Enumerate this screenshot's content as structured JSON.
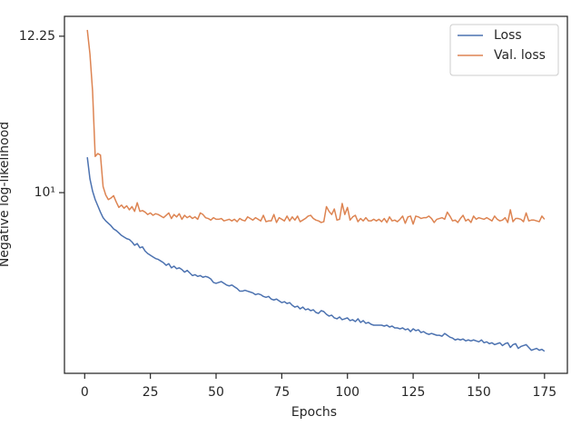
{
  "chart_data": {
    "type": "line",
    "xlabel": "Epochs",
    "ylabel": "Negative log-likelihood",
    "log_y": true,
    "legend": "upper right",
    "xlim": [
      -7.7,
      183.7
    ],
    "ylim": [
      7.91,
      12.57
    ],
    "xticks": [
      0,
      25,
      50,
      75,
      100,
      125,
      150,
      175
    ],
    "yticks": [
      {
        "value": 10,
        "label": "10¹"
      },
      12.25
    ],
    "x": [
      1,
      2,
      3,
      4,
      5,
      6,
      7,
      8,
      9,
      10,
      11,
      12,
      13,
      14,
      15,
      16,
      17,
      18,
      19,
      20,
      21,
      22,
      23,
      24,
      25,
      26,
      27,
      28,
      29,
      30,
      31,
      32,
      33,
      34,
      35,
      36,
      37,
      38,
      39,
      40,
      41,
      42,
      43,
      44,
      45,
      46,
      47,
      48,
      49,
      50,
      51,
      52,
      53,
      54,
      55,
      56,
      57,
      58,
      59,
      60,
      61,
      62,
      63,
      64,
      65,
      66,
      67,
      68,
      69,
      70,
      71,
      72,
      73,
      74,
      75,
      76,
      77,
      78,
      79,
      80,
      81,
      82,
      83,
      84,
      85,
      86,
      87,
      88,
      89,
      90,
      91,
      92,
      93,
      94,
      95,
      96,
      97,
      98,
      99,
      100,
      101,
      102,
      103,
      104,
      105,
      106,
      107,
      108,
      109,
      110,
      111,
      112,
      113,
      114,
      115,
      116,
      117,
      118,
      119,
      120,
      121,
      122,
      123,
      124,
      125,
      126,
      127,
      128,
      129,
      130,
      131,
      132,
      133,
      134,
      135,
      136,
      137,
      138,
      139,
      140,
      141,
      142,
      143,
      144,
      145,
      146,
      147,
      148,
      149,
      150,
      151,
      152,
      153,
      154,
      155,
      156,
      157,
      158,
      159,
      160,
      161,
      162,
      163,
      164,
      165,
      166,
      167,
      168,
      169,
      170,
      171,
      172,
      173,
      174,
      175
    ],
    "series": [
      {
        "name": "Loss",
        "color": "#4c72b0",
        "values": [
          10.47,
          10.18,
          10.02,
          9.91,
          9.83,
          9.75,
          9.68,
          9.64,
          9.61,
          9.58,
          9.54,
          9.52,
          9.49,
          9.46,
          9.44,
          9.42,
          9.41,
          9.38,
          9.34,
          9.36,
          9.31,
          9.32,
          9.27,
          9.24,
          9.22,
          9.2,
          9.18,
          9.17,
          9.15,
          9.13,
          9.1,
          9.12,
          9.07,
          9.09,
          9.06,
          9.07,
          9.05,
          9.02,
          9.04,
          9.01,
          8.98,
          8.99,
          8.97,
          8.98,
          8.96,
          8.97,
          8.96,
          8.94,
          8.9,
          8.89,
          8.9,
          8.91,
          8.89,
          8.87,
          8.86,
          8.87,
          8.85,
          8.83,
          8.8,
          8.8,
          8.81,
          8.8,
          8.79,
          8.78,
          8.76,
          8.77,
          8.76,
          8.74,
          8.73,
          8.74,
          8.71,
          8.7,
          8.71,
          8.69,
          8.67,
          8.68,
          8.66,
          8.67,
          8.64,
          8.62,
          8.63,
          8.6,
          8.62,
          8.59,
          8.6,
          8.58,
          8.59,
          8.56,
          8.55,
          8.58,
          8.57,
          8.54,
          8.52,
          8.53,
          8.5,
          8.49,
          8.51,
          8.48,
          8.49,
          8.5,
          8.47,
          8.48,
          8.46,
          8.49,
          8.45,
          8.47,
          8.44,
          8.45,
          8.43,
          8.42,
          8.42,
          8.42,
          8.42,
          8.41,
          8.42,
          8.4,
          8.41,
          8.39,
          8.39,
          8.38,
          8.39,
          8.37,
          8.38,
          8.35,
          8.38,
          8.36,
          8.37,
          8.34,
          8.35,
          8.33,
          8.32,
          8.33,
          8.32,
          8.31,
          8.31,
          8.3,
          8.33,
          8.31,
          8.29,
          8.28,
          8.26,
          8.27,
          8.26,
          8.27,
          8.25,
          8.26,
          8.25,
          8.26,
          8.25,
          8.24,
          8.26,
          8.23,
          8.24,
          8.22,
          8.23,
          8.21,
          8.22,
          8.23,
          8.2,
          8.22,
          8.23,
          8.18,
          8.21,
          8.22,
          8.17,
          8.19,
          8.2,
          8.21,
          8.18,
          8.15,
          8.16,
          8.17,
          8.15,
          8.16,
          8.14
        ]
      },
      {
        "name": "Val. loss",
        "color": "#dd8452",
        "values": [
          12.35,
          11.97,
          11.41,
          10.48,
          10.52,
          10.5,
          10.08,
          9.97,
          9.91,
          9.93,
          9.96,
          9.88,
          9.81,
          9.84,
          9.8,
          9.83,
          9.78,
          9.82,
          9.76,
          9.87,
          9.76,
          9.77,
          9.75,
          9.72,
          9.74,
          9.71,
          9.73,
          9.72,
          9.7,
          9.68,
          9.71,
          9.74,
          9.67,
          9.72,
          9.69,
          9.73,
          9.66,
          9.71,
          9.68,
          9.7,
          9.67,
          9.69,
          9.66,
          9.74,
          9.72,
          9.68,
          9.67,
          9.65,
          9.68,
          9.66,
          9.66,
          9.67,
          9.64,
          9.65,
          9.66,
          9.64,
          9.66,
          9.63,
          9.67,
          9.65,
          9.64,
          9.69,
          9.67,
          9.65,
          9.68,
          9.66,
          9.64,
          9.71,
          9.63,
          9.64,
          9.64,
          9.72,
          9.62,
          9.68,
          9.66,
          9.64,
          9.7,
          9.64,
          9.69,
          9.65,
          9.7,
          9.63,
          9.65,
          9.67,
          9.7,
          9.71,
          9.67,
          9.65,
          9.64,
          9.62,
          9.63,
          9.82,
          9.76,
          9.72,
          9.79,
          9.65,
          9.66,
          9.86,
          9.72,
          9.81,
          9.65,
          9.69,
          9.71,
          9.63,
          9.67,
          9.64,
          9.68,
          9.64,
          9.64,
          9.66,
          9.64,
          9.66,
          9.63,
          9.67,
          9.62,
          9.69,
          9.64,
          9.65,
          9.63,
          9.66,
          9.7,
          9.61,
          9.69,
          9.7,
          9.6,
          9.7,
          9.69,
          9.67,
          9.68,
          9.68,
          9.7,
          9.67,
          9.62,
          9.66,
          9.67,
          9.68,
          9.66,
          9.75,
          9.7,
          9.64,
          9.65,
          9.62,
          9.67,
          9.71,
          9.64,
          9.66,
          9.62,
          9.7,
          9.66,
          9.68,
          9.67,
          9.66,
          9.68,
          9.66,
          9.64,
          9.7,
          9.66,
          9.64,
          9.65,
          9.68,
          9.62,
          9.78,
          9.63,
          9.67,
          9.67,
          9.66,
          9.63,
          9.74,
          9.64,
          9.65,
          9.65,
          9.64,
          9.63,
          9.7,
          9.66
        ]
      }
    ]
  }
}
